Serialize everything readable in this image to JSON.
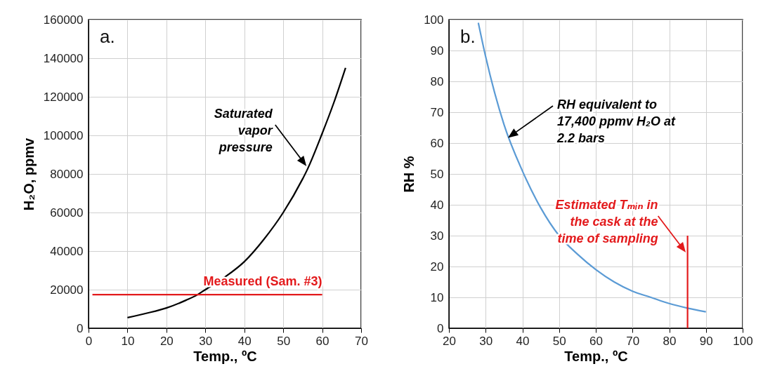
{
  "chart_data": [
    {
      "type": "line",
      "title": "a.",
      "xlabel": "Temp., ºC",
      "ylabel": "H₂O, ppmv",
      "xlim": [
        0,
        70
      ],
      "xticks": [
        0,
        10,
        20,
        30,
        40,
        50,
        60,
        70
      ],
      "ylim": [
        0,
        160000
      ],
      "yticks": [
        0,
        20000,
        40000,
        60000,
        80000,
        100000,
        120000,
        140000,
        160000
      ],
      "grid": true,
      "series": [
        {
          "color": "#000000",
          "x": [
            10,
            15,
            20,
            25,
            28,
            30,
            35,
            40,
            45,
            50,
            55,
            56,
            60,
            63,
            66
          ],
          "values": [
            5500,
            7800,
            10500,
            14500,
            17400,
            20000,
            26500,
            34500,
            46000,
            60000,
            77500,
            81500,
            101000,
            117000,
            135000
          ]
        },
        {
          "name": "Measured (Sam. #3)",
          "color": "#e31a1c",
          "x": [
            1,
            60
          ],
          "values": [
            17400,
            17400
          ]
        }
      ],
      "annotations": [
        {
          "text": "Saturated\nvapor\npressure",
          "x": 55.7,
          "y": 84700
        }
      ]
    },
    {
      "type": "line",
      "title": "b.",
      "xlabel": "Temp., ºC",
      "ylabel": "RH %",
      "xlim": [
        20,
        100
      ],
      "xticks": [
        20,
        30,
        40,
        50,
        60,
        70,
        80,
        90,
        100
      ],
      "ylim": [
        0,
        100
      ],
      "yticks": [
        0,
        10,
        20,
        30,
        40,
        50,
        60,
        70,
        80,
        90,
        100
      ],
      "grid": true,
      "series": [
        {
          "color": "#5b9bd5",
          "x": [
            28,
            30,
            35,
            40,
            45,
            50,
            55,
            60,
            65,
            70,
            75,
            80,
            85,
            90
          ],
          "values": [
            99,
            88,
            66,
            51,
            39,
            30,
            24,
            19,
            15,
            12,
            10,
            8,
            6.5,
            5.3
          ]
        },
        {
          "color": "#e31a1c",
          "x": [
            85,
            85
          ],
          "values": [
            0,
            30
          ]
        }
      ],
      "annotations": [
        "RH equivalent to\n17,400 ppmv H₂O at\n2.2 bars",
        {
          "text": "Estimated Tₘᵢₙ in\nthe cask at the\ntime of sampling",
          "x": 85,
          "y": 25
        }
      ]
    }
  ]
}
